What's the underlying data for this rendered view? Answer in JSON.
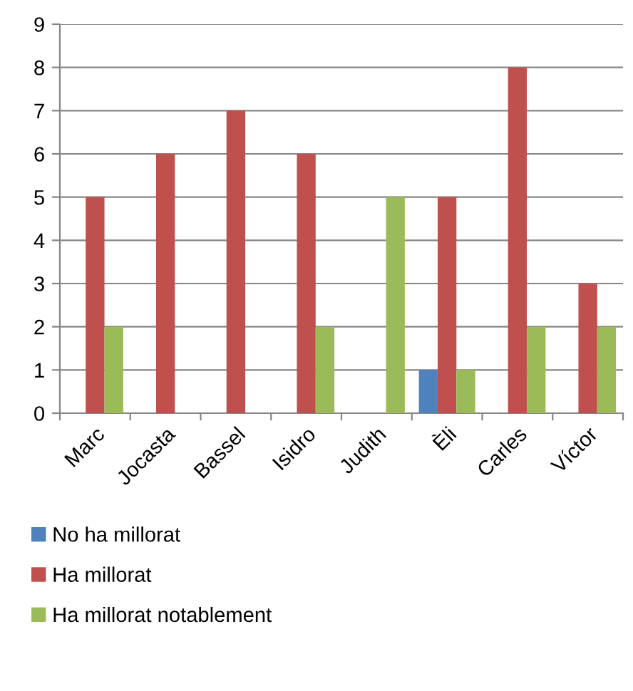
{
  "chart_data": {
    "type": "bar",
    "categories": [
      "Marc",
      "Jocasta",
      "Bassel",
      "Isidro",
      "Judith",
      "Èli",
      "Carles",
      "Víctor"
    ],
    "series": [
      {
        "name": "No ha millorat",
        "color": "#4f81bd",
        "values": [
          null,
          null,
          null,
          null,
          null,
          1,
          null,
          null
        ]
      },
      {
        "name": "Ha millorat",
        "color": "#c0504d",
        "values": [
          5,
          6,
          7,
          6,
          null,
          5,
          8,
          3
        ]
      },
      {
        "name": "Ha millorat notablement",
        "color": "#9bbb59",
        "values": [
          2,
          null,
          null,
          2,
          5,
          1,
          2,
          2
        ]
      }
    ],
    "ylim": [
      0,
      9
    ],
    "yticks": [
      0,
      1,
      2,
      3,
      4,
      5,
      6,
      7,
      8,
      9
    ],
    "grid": "y",
    "legend": "bottom"
  }
}
